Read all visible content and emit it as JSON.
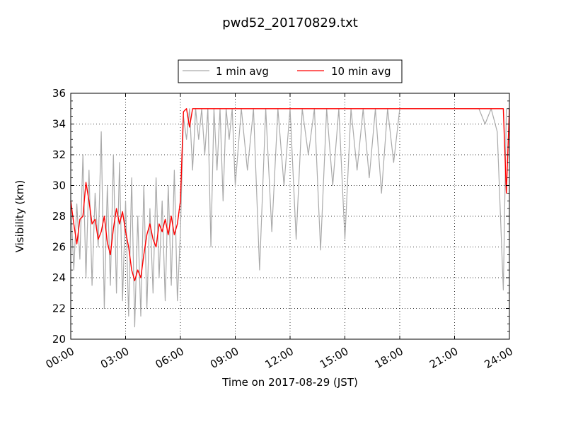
{
  "chart_data": {
    "type": "line",
    "title": "pwd52_20170829.txt",
    "xlabel": "Time on 2017-08-29 (JST)",
    "ylabel": "Visibility (km)",
    "xlim": [
      "00:00",
      "24:00"
    ],
    "ylim": [
      20,
      36
    ],
    "x_ticks": [
      "00:00",
      "03:00",
      "06:00",
      "09:00",
      "12:00",
      "15:00",
      "18:00",
      "21:00",
      "24:00"
    ],
    "y_ticks": [
      20,
      22,
      24,
      26,
      28,
      30,
      32,
      34,
      36
    ],
    "grid": true,
    "legend": {
      "placement": "top-center",
      "entries": [
        "1 min avg",
        "10 min avg"
      ]
    },
    "series": [
      {
        "name": "1 min avg",
        "color": "#aaaaaa",
        "x": [
          "00:00",
          "00:10",
          "00:20",
          "00:30",
          "00:40",
          "00:50",
          "01:00",
          "01:10",
          "01:20",
          "01:30",
          "01:40",
          "01:50",
          "02:00",
          "02:10",
          "02:20",
          "02:30",
          "02:40",
          "02:50",
          "03:00",
          "03:10",
          "03:20",
          "03:30",
          "03:40",
          "03:50",
          "04:00",
          "04:10",
          "04:20",
          "04:30",
          "04:40",
          "04:50",
          "05:00",
          "05:10",
          "05:20",
          "05:30",
          "05:40",
          "05:50",
          "06:00",
          "06:10",
          "06:20",
          "06:30",
          "06:40",
          "06:50",
          "07:00",
          "07:10",
          "07:20",
          "07:30",
          "07:40",
          "07:50",
          "08:00",
          "08:10",
          "08:20",
          "08:30",
          "08:40",
          "08:50",
          "09:00",
          "09:20",
          "09:40",
          "10:00",
          "10:20",
          "10:40",
          "11:00",
          "11:20",
          "11:40",
          "12:00",
          "12:20",
          "12:40",
          "13:00",
          "13:20",
          "13:40",
          "14:00",
          "14:20",
          "14:40",
          "15:00",
          "15:20",
          "15:40",
          "16:00",
          "16:20",
          "16:40",
          "17:00",
          "17:20",
          "17:40",
          "18:00",
          "21:00",
          "22:20",
          "22:40",
          "23:00",
          "23:20",
          "23:40",
          "23:50",
          "24:00"
        ],
        "values": [
          29.0,
          24.5,
          28.8,
          25.2,
          32.0,
          24.0,
          31.0,
          23.5,
          29.5,
          26.0,
          33.5,
          22.0,
          30.0,
          23.5,
          32.0,
          23.0,
          31.5,
          22.5,
          29.0,
          21.5,
          30.5,
          20.8,
          28.0,
          21.5,
          30.0,
          22.0,
          28.5,
          23.0,
          30.5,
          24.0,
          29.0,
          22.5,
          30.0,
          23.5,
          31.0,
          22.5,
          27.0,
          34.5,
          33.0,
          35.0,
          31.0,
          35.0,
          33.0,
          35.0,
          32.0,
          35.0,
          26.0,
          35.0,
          31.0,
          35.0,
          29.0,
          35.0,
          33.0,
          35.0,
          30.0,
          35.0,
          31.0,
          35.0,
          24.5,
          35.0,
          27.0,
          35.0,
          30.0,
          35.0,
          26.5,
          35.0,
          32.0,
          35.0,
          25.8,
          35.0,
          30.0,
          35.0,
          26.5,
          35.0,
          31.0,
          35.0,
          30.5,
          35.0,
          29.5,
          35.0,
          31.5,
          35.0,
          35.0,
          35.0,
          34.0,
          35.0,
          33.5,
          23.2,
          35.0,
          35.0
        ]
      },
      {
        "name": "10 min avg",
        "color": "#ff0000",
        "x": [
          "00:00",
          "00:10",
          "00:20",
          "00:30",
          "00:40",
          "00:50",
          "01:00",
          "01:10",
          "01:20",
          "01:30",
          "01:40",
          "01:50",
          "02:00",
          "02:10",
          "02:20",
          "02:30",
          "02:40",
          "02:50",
          "03:00",
          "03:10",
          "03:20",
          "03:30",
          "03:40",
          "03:50",
          "04:00",
          "04:10",
          "04:20",
          "04:30",
          "04:40",
          "04:50",
          "05:00",
          "05:10",
          "05:20",
          "05:30",
          "05:40",
          "05:50",
          "06:00",
          "06:10",
          "06:20",
          "06:30",
          "06:40",
          "06:50",
          "07:00",
          "07:10",
          "08:00",
          "12:00",
          "18:00",
          "21:00",
          "23:00",
          "23:30",
          "23:40",
          "23:50",
          "24:00"
        ],
        "values": [
          29.0,
          27.5,
          26.2,
          27.8,
          28.0,
          30.2,
          29.0,
          27.5,
          27.8,
          26.5,
          27.0,
          28.0,
          26.3,
          25.5,
          27.2,
          28.5,
          27.5,
          28.3,
          27.0,
          26.0,
          24.5,
          23.8,
          24.5,
          24.0,
          25.5,
          26.8,
          27.5,
          26.5,
          26.0,
          27.5,
          27.0,
          27.8,
          26.8,
          28.0,
          26.8,
          27.5,
          29.0,
          34.8,
          35.0,
          33.8,
          35.0,
          35.0,
          35.0,
          35.0,
          35.0,
          35.0,
          35.0,
          35.0,
          35.0,
          35.0,
          35.0,
          29.5,
          35.0
        ]
      }
    ]
  }
}
